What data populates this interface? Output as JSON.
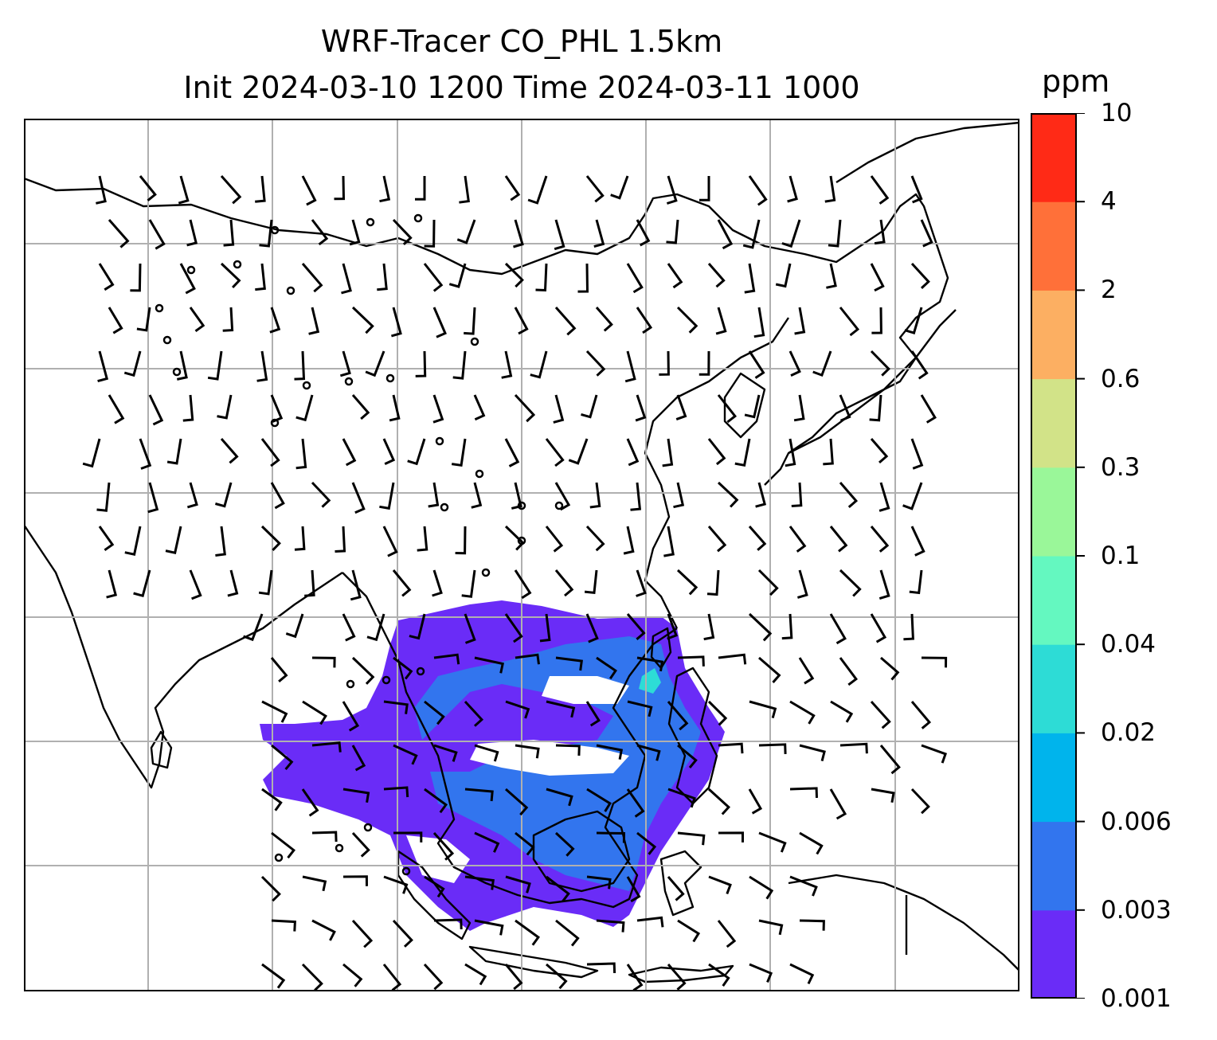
{
  "title": {
    "line1": "WRF-Tracer CO_PHL 1.5km",
    "line2": "Init 2024-03-10 1200 Time 2024-03-11 1000"
  },
  "colorbar": {
    "unit": "ppm",
    "tick_labels": [
      "0.001",
      "0.003",
      "0.006",
      "0.02",
      "0.04",
      "0.1",
      "0.3",
      "0.6",
      "2",
      "4",
      "10"
    ],
    "colors": [
      "#6a2cf7",
      "#3275ee",
      "#00b4ec",
      "#2ddcd6",
      "#64f8c0",
      "#9af799",
      "#d2e388",
      "#fcaf62",
      "#ff7039",
      "#ff2a16"
    ]
  },
  "map": {
    "coastline_color": "#000000",
    "gridline_color": "#b0b0b0",
    "plume_colors": {
      "low": "#6a2cf7",
      "mid": "#3275ee",
      "high": "#2ddcd6"
    },
    "features": [
      "coastlines",
      "gridlines",
      "wind-barbs",
      "tracer-plume"
    ]
  }
}
